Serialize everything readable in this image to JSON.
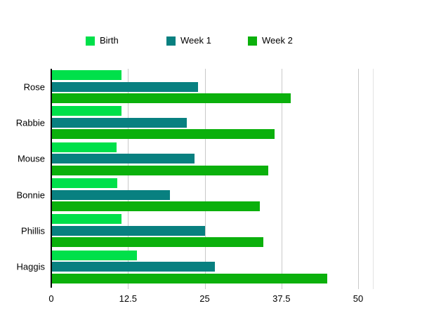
{
  "chart_data": {
    "type": "bar",
    "orientation": "horizontal",
    "title": "",
    "xlabel": "",
    "ylabel": "",
    "categories": [
      "Rose",
      "Rabbie",
      "Mouse",
      "Bonnie",
      "Phillis",
      "Haggis"
    ],
    "series": [
      {
        "name": "Birth",
        "color": "#00E04A",
        "values": [
          11.3,
          11.3,
          10.5,
          10.7,
          11.4,
          13.9
        ]
      },
      {
        "name": "Week 1",
        "color": "#088080",
        "values": [
          23.8,
          22.0,
          23.3,
          19.3,
          25.0,
          26.6
        ]
      },
      {
        "name": "Week 2",
        "color": "#0BB00C",
        "values": [
          39.0,
          36.3,
          35.3,
          34.0,
          34.5,
          45.0
        ]
      }
    ],
    "xlim": [
      0,
      50
    ],
    "x_ticks": [
      0,
      12.5,
      25,
      37.5,
      50
    ],
    "x_tick_labels": [
      "0",
      "12.5",
      "25",
      "37.5",
      "50"
    ],
    "grid": true,
    "legend_position": "top",
    "axis_color": "#000000",
    "gridline_color": "#C9C9C9"
  }
}
